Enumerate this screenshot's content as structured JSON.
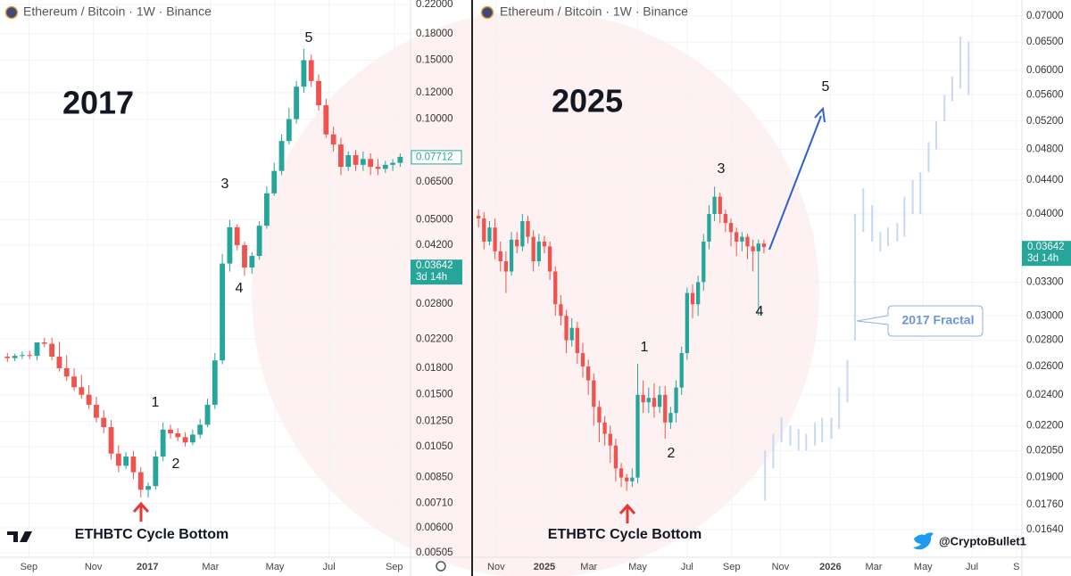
{
  "chart_data": [
    {
      "type": "candlestick",
      "title": "Ethereum / Bitcoin · 1W · Binance",
      "label": "2017",
      "waves": [
        "1",
        "2",
        "3",
        "4",
        "5"
      ],
      "bottom_label": "ETHBTC Cycle Bottom",
      "log_scale": true,
      "grid": true,
      "up_color": "#26a69a",
      "down_color": "#ef5350",
      "x": [
        1,
        2,
        3,
        4,
        5,
        6,
        7,
        8,
        9,
        10,
        11,
        12,
        13,
        14,
        15,
        16,
        17,
        18,
        19,
        20,
        21,
        22,
        23,
        24,
        25,
        26,
        27,
        28,
        29,
        30,
        31,
        32,
        33,
        34,
        35,
        36,
        37,
        38,
        39,
        40,
        41,
        42,
        43,
        44,
        45,
        46,
        47,
        48,
        49,
        50,
        51,
        52,
        53,
        54
      ],
      "open": [
        0.0195,
        0.0193,
        0.0196,
        0.0197,
        0.0196,
        0.0215,
        0.0213,
        0.0195,
        0.018,
        0.017,
        0.0158,
        0.015,
        0.014,
        0.0128,
        0.012,
        0.01,
        0.0092,
        0.0098,
        0.0088,
        0.0078,
        0.008,
        0.0098,
        0.0118,
        0.0115,
        0.0112,
        0.0108,
        0.0114,
        0.0122,
        0.014,
        0.019,
        0.037,
        0.0475,
        0.042,
        0.036,
        0.039,
        0.048,
        0.06,
        0.07,
        0.086,
        0.1,
        0.125,
        0.15,
        0.13,
        0.11,
        0.09,
        0.084,
        0.072,
        0.078,
        0.073,
        0.076,
        0.072,
        0.071,
        0.073,
        0.074
      ],
      "high": [
        0.02,
        0.0199,
        0.0202,
        0.0203,
        0.0202,
        0.0222,
        0.0222,
        0.0216,
        0.0197,
        0.018,
        0.0172,
        0.016,
        0.0148,
        0.0135,
        0.0126,
        0.0106,
        0.0101,
        0.0102,
        0.0091,
        0.0082,
        0.0102,
        0.0124,
        0.0122,
        0.0119,
        0.0116,
        0.0118,
        0.0127,
        0.0146,
        0.02,
        0.0395,
        0.05,
        0.0485,
        0.043,
        0.04,
        0.0495,
        0.063,
        0.074,
        0.09,
        0.108,
        0.13,
        0.162,
        0.156,
        0.136,
        0.115,
        0.095,
        0.088,
        0.08,
        0.081,
        0.08,
        0.079,
        0.076,
        0.075,
        0.076,
        0.079
      ],
      "low": [
        0.0188,
        0.0189,
        0.0192,
        0.0192,
        0.019,
        0.0208,
        0.019,
        0.0176,
        0.0165,
        0.0154,
        0.0146,
        0.0136,
        0.0124,
        0.0115,
        0.0096,
        0.0088,
        0.009,
        0.0084,
        0.0074,
        0.0074,
        0.0078,
        0.0095,
        0.0111,
        0.0109,
        0.0105,
        0.0106,
        0.0111,
        0.012,
        0.0136,
        0.0185,
        0.035,
        0.0405,
        0.034,
        0.0345,
        0.038,
        0.047,
        0.059,
        0.068,
        0.084,
        0.097,
        0.12,
        0.125,
        0.106,
        0.088,
        0.08,
        0.068,
        0.07,
        0.07,
        0.07,
        0.068,
        0.068,
        0.069,
        0.07,
        0.072
      ],
      "close": [
        0.0193,
        0.0196,
        0.0197,
        0.0196,
        0.0215,
        0.0213,
        0.0195,
        0.018,
        0.017,
        0.0158,
        0.015,
        0.014,
        0.0128,
        0.012,
        0.01,
        0.0092,
        0.0098,
        0.0088,
        0.0078,
        0.008,
        0.0098,
        0.0118,
        0.0115,
        0.0112,
        0.0108,
        0.0114,
        0.0122,
        0.014,
        0.019,
        0.037,
        0.0475,
        0.042,
        0.036,
        0.039,
        0.048,
        0.06,
        0.07,
        0.086,
        0.1,
        0.125,
        0.15,
        0.13,
        0.11,
        0.09,
        0.084,
        0.072,
        0.078,
        0.073,
        0.076,
        0.072,
        0.071,
        0.073,
        0.074,
        0.07712
      ],
      "xlim": [
        0,
        55.4
      ],
      "ylim": [
        0.0049,
        0.227
      ],
      "yticks": [
        {
          "value": 0.22,
          "label": "0.22000"
        },
        {
          "value": 0.18,
          "label": "0.18000"
        },
        {
          "value": 0.15,
          "label": "0.15000"
        },
        {
          "value": 0.12,
          "label": "0.12000"
        },
        {
          "value": 0.1,
          "label": "0.10000"
        },
        {
          "value": 0.065,
          "label": "0.06500"
        },
        {
          "value": 0.05,
          "label": "0.05000"
        },
        {
          "value": 0.042,
          "label": "0.04200"
        },
        {
          "value": 0.028,
          "label": "0.02800"
        },
        {
          "value": 0.022,
          "label": "0.02200"
        },
        {
          "value": 0.018,
          "label": "0.01800"
        },
        {
          "value": 0.015,
          "label": "0.01500"
        },
        {
          "value": 0.0125,
          "label": "0.01250"
        },
        {
          "value": 0.0105,
          "label": "0.01050"
        },
        {
          "value": 0.0085,
          "label": "0.00850"
        },
        {
          "value": 0.0071,
          "label": "0.00710"
        },
        {
          "value": 0.006,
          "label": "0.00600"
        },
        0.00505
      ],
      "xticks": [
        {
          "value": 3.9,
          "label": "Sep"
        },
        {
          "value": 12.6,
          "label": "Nov"
        },
        {
          "value": 19.9,
          "label": "2017"
        },
        {
          "value": 28.4,
          "label": "Mar"
        },
        {
          "value": 37.1,
          "label": "May"
        },
        {
          "value": 44.4,
          "label": "Jul"
        },
        {
          "value": 53.2,
          "label": "Sep"
        }
      ],
      "price_tags": [
        {
          "price": 0.07712,
          "style": "outline"
        },
        {
          "price": 0.03642,
          "countdown": "3d 14h",
          "style": "filled"
        }
      ]
    },
    {
      "type": "candlestick",
      "title": "Ethereum / Bitcoin · 1W · Binance",
      "label": "2025",
      "waves": [
        "1",
        "2",
        "3",
        "4",
        "5"
      ],
      "bottom_label": "ETHBTC Cycle Bottom",
      "log_scale": true,
      "grid": true,
      "up_color": "#26a69a",
      "down_color": "#ef5350",
      "x": [
        1,
        2,
        3,
        4,
        5,
        6,
        7,
        8,
        9,
        10,
        11,
        12,
        13,
        14,
        15,
        16,
        17,
        18,
        19,
        20,
        21,
        22,
        23,
        24,
        25,
        26,
        27,
        28,
        29,
        30,
        31,
        32,
        33,
        34,
        35,
        36,
        37,
        38,
        39,
        40,
        41,
        42,
        43,
        44,
        45,
        46,
        47,
        48,
        49,
        50,
        51,
        52,
        53
      ],
      "open": [
        0.0398,
        0.0395,
        0.037,
        0.0385,
        0.036,
        0.035,
        0.034,
        0.0372,
        0.0365,
        0.0392,
        0.0375,
        0.035,
        0.037,
        0.0365,
        0.034,
        0.031,
        0.03,
        0.028,
        0.029,
        0.027,
        0.026,
        0.025,
        0.0232,
        0.0222,
        0.0215,
        0.0208,
        0.0195,
        0.019,
        0.0188,
        0.019,
        0.024,
        0.0235,
        0.0238,
        0.0232,
        0.024,
        0.0222,
        0.0228,
        0.0245,
        0.027,
        0.032,
        0.031,
        0.033,
        0.037,
        0.04,
        0.042,
        0.04,
        0.039,
        0.038,
        0.037,
        0.0375,
        0.0365,
        0.036,
        0.0368
      ],
      "high": [
        0.0405,
        0.0402,
        0.0392,
        0.0395,
        0.037,
        0.036,
        0.038,
        0.038,
        0.04,
        0.0398,
        0.0382,
        0.0378,
        0.0376,
        0.037,
        0.0345,
        0.0318,
        0.0305,
        0.0298,
        0.0295,
        0.0278,
        0.0265,
        0.0255,
        0.0236,
        0.0226,
        0.022,
        0.0212,
        0.0198,
        0.0192,
        0.0195,
        0.0262,
        0.025,
        0.0245,
        0.0248,
        0.0246,
        0.0246,
        0.0232,
        0.025,
        0.0275,
        0.0325,
        0.0328,
        0.0336,
        0.0378,
        0.041,
        0.0432,
        0.0425,
        0.0405,
        0.0395,
        0.0385,
        0.038,
        0.0378,
        0.0372,
        0.0372,
        0.0372
      ],
      "low": [
        0.0385,
        0.0362,
        0.0366,
        0.0352,
        0.034,
        0.032,
        0.0336,
        0.0358,
        0.036,
        0.0368,
        0.034,
        0.0345,
        0.0358,
        0.0332,
        0.03,
        0.0292,
        0.027,
        0.0275,
        0.0262,
        0.0252,
        0.024,
        0.022,
        0.021,
        0.0208,
        0.0198,
        0.0188,
        0.0185,
        0.0183,
        0.0185,
        0.0187,
        0.0228,
        0.0228,
        0.0225,
        0.0228,
        0.0212,
        0.0218,
        0.0222,
        0.024,
        0.0265,
        0.0298,
        0.03,
        0.0322,
        0.0362,
        0.0392,
        0.039,
        0.038,
        0.0365,
        0.0355,
        0.036,
        0.0352,
        0.034,
        0.03,
        0.0358
      ],
      "close": [
        0.0395,
        0.037,
        0.0385,
        0.036,
        0.035,
        0.034,
        0.0372,
        0.0365,
        0.0392,
        0.0375,
        0.035,
        0.037,
        0.0365,
        0.034,
        0.031,
        0.03,
        0.028,
        0.029,
        0.027,
        0.026,
        0.025,
        0.0232,
        0.0222,
        0.0215,
        0.0208,
        0.0195,
        0.019,
        0.0188,
        0.019,
        0.024,
        0.0235,
        0.0238,
        0.0232,
        0.024,
        0.0222,
        0.0228,
        0.0245,
        0.027,
        0.032,
        0.031,
        0.033,
        0.037,
        0.04,
        0.042,
        0.04,
        0.039,
        0.038,
        0.037,
        0.0375,
        0.0365,
        0.036,
        0.0368,
        0.03642
      ],
      "xlim": [
        0,
        100
      ],
      "ylim": [
        0.01517,
        0.0732
      ],
      "yticks": [
        {
          "value": 0.07,
          "label": "0.07000"
        },
        {
          "value": 0.065,
          "label": "0.06500"
        },
        {
          "value": 0.06,
          "label": "0.06000"
        },
        {
          "value": 0.056,
          "label": "0.05600"
        },
        {
          "value": 0.052,
          "label": "0.05200"
        },
        {
          "value": 0.048,
          "label": "0.04800"
        },
        {
          "value": 0.044,
          "label": "0.04400"
        },
        {
          "value": 0.04,
          "label": "0.04000"
        },
        {
          "value": 0.033,
          "label": "0.03300"
        },
        {
          "value": 0.03,
          "label": "0.03000"
        },
        {
          "value": 0.028,
          "label": "0.02800"
        },
        {
          "value": 0.026,
          "label": "0.02600"
        },
        {
          "value": 0.024,
          "label": "0.02400"
        },
        {
          "value": 0.022,
          "label": "0.02200"
        },
        {
          "value": 0.0205,
          "label": "0.02050"
        },
        {
          "value": 0.019,
          "label": "0.01900"
        },
        {
          "value": 0.0176,
          "label": "0.01760"
        },
        {
          "value": 0.0164,
          "label": "0.01640"
        }
      ],
      "xticks": [
        {
          "value": 4.2,
          "label": "Nov"
        },
        {
          "value": 13,
          "label": "2025"
        },
        {
          "value": 21.1,
          "label": "Mar"
        },
        {
          "value": 30,
          "label": "May"
        },
        {
          "value": 39,
          "label": "Jul"
        },
        {
          "value": 47.1,
          "label": "Sep"
        },
        {
          "value": 56,
          "label": "Nov"
        },
        {
          "value": 65.1,
          "label": "2026"
        },
        {
          "value": 73,
          "label": "Mar"
        },
        {
          "value": 82,
          "label": "May"
        },
        {
          "value": 90.9,
          "label": "Jul"
        },
        {
          "value": 99,
          "label": "S"
        }
      ],
      "price_tags": [
        {
          "price": 0.03642,
          "countdown": "3d 14h",
          "style": "filled"
        }
      ],
      "fractal": {
        "name": "2017 Fractal",
        "color": "#c9d8f2",
        "x": [
          53.2,
          54.7,
          56.2,
          57.8,
          59.3,
          60.7,
          62.3,
          63.6,
          65.3,
          66.7,
          68.2,
          69.6,
          71.1,
          72.7,
          74.2,
          75.6,
          77.3,
          78.6,
          80.1,
          81.5,
          83.0,
          84.4,
          85.9,
          87.3,
          88.8,
          90.3
        ],
        "high": [
          0.0205,
          0.0215,
          0.0225,
          0.022,
          0.0218,
          0.0215,
          0.0222,
          0.0225,
          0.0225,
          0.0245,
          0.0265,
          0.04,
          0.043,
          0.041,
          0.038,
          0.0385,
          0.039,
          0.042,
          0.044,
          0.045,
          0.049,
          0.052,
          0.056,
          0.059,
          0.066,
          0.065
        ],
        "low": [
          0.0178,
          0.0195,
          0.021,
          0.0208,
          0.0205,
          0.0205,
          0.0208,
          0.021,
          0.0212,
          0.0218,
          0.0235,
          0.028,
          0.038,
          0.037,
          0.036,
          0.0365,
          0.037,
          0.0375,
          0.04,
          0.04,
          0.045,
          0.048,
          0.052,
          0.055,
          0.057,
          0.056
        ]
      },
      "credit": "@CryptoBullet1"
    }
  ]
}
